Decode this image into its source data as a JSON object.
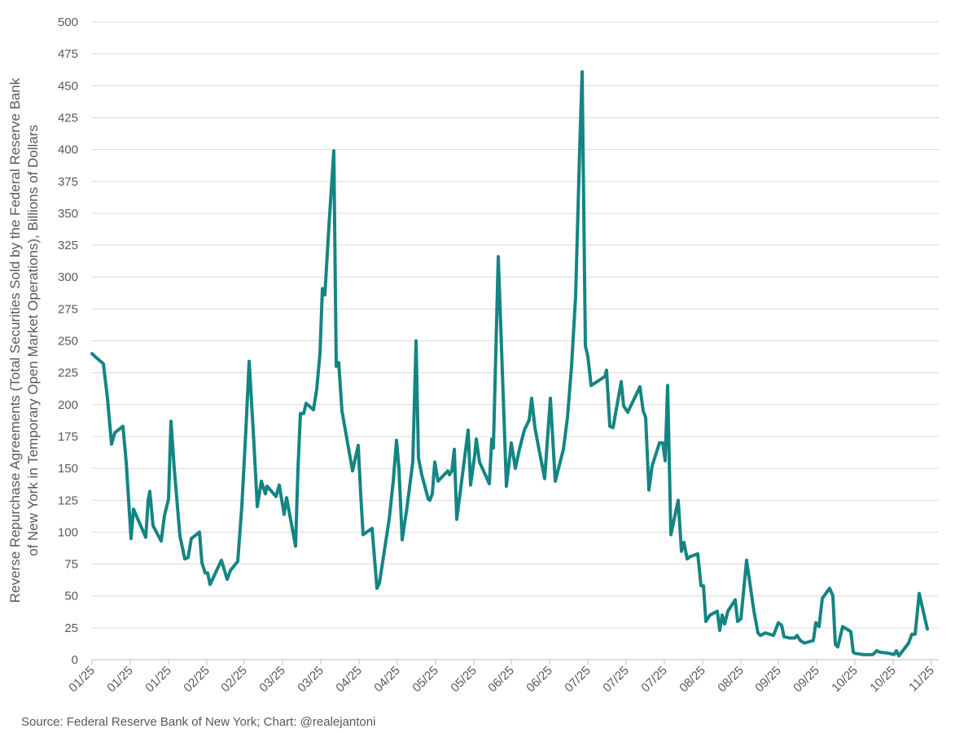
{
  "chart_data": {
    "type": "line",
    "ylabel": [
      "Reverse Repurchase Agreements (Total Securities Sold by the Federal Reserve Bank",
      "of New York in Temporary Open Market Operations), Billions of Dollars"
    ],
    "source": "Source: Federal Reserve Bank of New York; Chart: @realejantoni",
    "color": "#148582",
    "grid": true,
    "ylim": [
      0,
      500
    ],
    "yticks": [
      0,
      25,
      50,
      75,
      100,
      125,
      150,
      175,
      200,
      225,
      250,
      275,
      300,
      325,
      350,
      375,
      400,
      425,
      450,
      475,
      500
    ],
    "xlim": [
      0,
      1040
    ],
    "xticks": [
      {
        "value": 0,
        "label": "01/25"
      },
      {
        "value": 47,
        "label": "01/25"
      },
      {
        "value": 94,
        "label": "01/25"
      },
      {
        "value": 141,
        "label": "02/25"
      },
      {
        "value": 187,
        "label": "02/25"
      },
      {
        "value": 234,
        "label": "03/25"
      },
      {
        "value": 281,
        "label": "03/25"
      },
      {
        "value": 328,
        "label": "04/25"
      },
      {
        "value": 375,
        "label": "04/25"
      },
      {
        "value": 422,
        "label": "05/25"
      },
      {
        "value": 469,
        "label": "05/25"
      },
      {
        "value": 515,
        "label": "06/25"
      },
      {
        "value": 562,
        "label": "06/25"
      },
      {
        "value": 609,
        "label": "07/25"
      },
      {
        "value": 656,
        "label": "07/25"
      },
      {
        "value": 703,
        "label": "07/25"
      },
      {
        "value": 750,
        "label": "08/25"
      },
      {
        "value": 797,
        "label": "08/25"
      },
      {
        "value": 843,
        "label": "09/25"
      },
      {
        "value": 890,
        "label": "09/25"
      },
      {
        "value": 937,
        "label": "10/25"
      },
      {
        "value": 984,
        "label": "10/25"
      },
      {
        "value": 1031,
        "label": "11/25"
      }
    ],
    "x": [
      0,
      5,
      14,
      19,
      24,
      28,
      38,
      42,
      48,
      51,
      66,
      69,
      71,
      75,
      85,
      89,
      94,
      97,
      101,
      108,
      114,
      118,
      122,
      132,
      135,
      139,
      142,
      145,
      159,
      166,
      170,
      179,
      184,
      189,
      193,
      198,
      203,
      208,
      213,
      215,
      226,
      230,
      236,
      239,
      250,
      253,
      256,
      260,
      263,
      272,
      276,
      280,
      283,
      286,
      291,
      297,
      300,
      303,
      307,
      320,
      327,
      330,
      333,
      344,
      350,
      353,
      365,
      370,
      374,
      377,
      381,
      387,
      394,
      398,
      401,
      405,
      413,
      415,
      418,
      421,
      425,
      437,
      439,
      442,
      445,
      448,
      453,
      462,
      465,
      470,
      472,
      476,
      488,
      491,
      493,
      499,
      509,
      515,
      520,
      525,
      531,
      537,
      540,
      544,
      549,
      556,
      563,
      569,
      579,
      584,
      589,
      594,
      599,
      602,
      606,
      609,
      613,
      630,
      632,
      636,
      640,
      650,
      653,
      658,
      673,
      677,
      680,
      684,
      688,
      697,
      701,
      704,
      707,
      711,
      720,
      724,
      727,
      731,
      735,
      744,
      748,
      751,
      754,
      756,
      759,
      768,
      771,
      774,
      777,
      781,
      790,
      793,
      797,
      804,
      813,
      818,
      821,
      827,
      837,
      843,
      847,
      850,
      857,
      863,
      866,
      870,
      875,
      886,
      889,
      893,
      897,
      906,
      910,
      913,
      916,
      922,
      932,
      935,
      937,
      947,
      959,
      964,
      967,
      979,
      985,
      988,
      991,
      1003,
      1007,
      1011,
      1016,
      1026
    ],
    "values": [
      240,
      237,
      232,
      205,
      169,
      178,
      183,
      155,
      95,
      118,
      96,
      125,
      132,
      105,
      93,
      113,
      126,
      187,
      150,
      97,
      79,
      80,
      95,
      100,
      76,
      68,
      68,
      59,
      78,
      63,
      70,
      77,
      120,
      180,
      234,
      180,
      120,
      140,
      130,
      136,
      128,
      137,
      114,
      127,
      89,
      150,
      193,
      193,
      201,
      196,
      212,
      240,
      291,
      286,
      340,
      399,
      230,
      233,
      195,
      148,
      168,
      130,
      98,
      103,
      56,
      60,
      110,
      140,
      172,
      150,
      94,
      120,
      155,
      250,
      158,
      145,
      126,
      125,
      130,
      155,
      140,
      148,
      145,
      148,
      165,
      110,
      135,
      180,
      137,
      160,
      173,
      155,
      138,
      173,
      166,
      316,
      136,
      170,
      150,
      165,
      180,
      188,
      205,
      182,
      165,
      142,
      205,
      140,
      165,
      190,
      230,
      285,
      400,
      461,
      246,
      238,
      215,
      222,
      227,
      183,
      182,
      218,
      199,
      194,
      214,
      195,
      190,
      133,
      152,
      170,
      170,
      156,
      215,
      98,
      125,
      85,
      92,
      79,
      81,
      83,
      58,
      58,
      30,
      32,
      35,
      38,
      23,
      35,
      28,
      38,
      47,
      30,
      32,
      78,
      38,
      21,
      19,
      21,
      19,
      29,
      27,
      18,
      17,
      17,
      19,
      15,
      13,
      15,
      29,
      26,
      48,
      56,
      50,
      12,
      10,
      26,
      22,
      6,
      5,
      4,
      4,
      7,
      6,
      5,
      4,
      7,
      3,
      13,
      20,
      20,
      52,
      24
    ]
  }
}
